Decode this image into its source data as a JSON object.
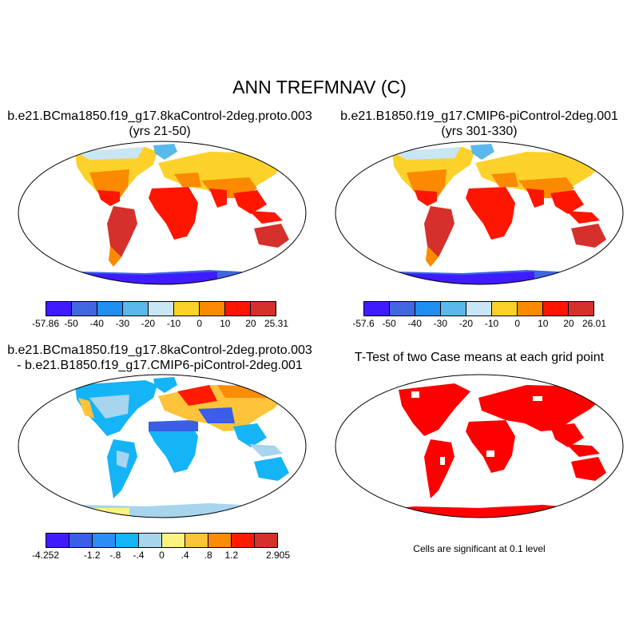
{
  "title": "ANN TREFMNAV (C)",
  "panels": {
    "case1": {
      "title_line1": "b.e21.BCma1850.f19_g17.8kaControl-2deg.proto.003",
      "title_line2": "(yrs 21-50)",
      "colors": [
        "#3f1cff",
        "#4066e0",
        "#1e8ff0",
        "#5ab8ea",
        "#c8e6f5",
        "#fcd22a",
        "#fb8a00",
        "#ff1600",
        "#d5302c"
      ],
      "tick_labels": [
        "-57.86",
        "-50",
        "-40",
        "-30",
        "-20",
        "-10",
        "0",
        "10",
        "20",
        "25.31"
      ]
    },
    "case2": {
      "title_line1": "b.e21.B1850.f19_g17.CMIP6-piControl-2deg.001",
      "title_line2": "(yrs 301-330)",
      "colors": [
        "#3f1cff",
        "#4066e0",
        "#1e8ff0",
        "#5ab8ea",
        "#c8e6f5",
        "#fcd22a",
        "#fb8a00",
        "#ff1600",
        "#d5302c"
      ],
      "tick_labels": [
        "-57.6",
        "-50",
        "-40",
        "-30",
        "-20",
        "-10",
        "0",
        "10",
        "20",
        "26.01"
      ]
    },
    "diff": {
      "title_line1": "b.e21.BCma1850.f19_g17.8kaControl-2deg.proto.003",
      "title_line2": "- b.e21.B1850.f19_g17.CMIP6-piControl-2deg.001",
      "colors": [
        "#3f1cff",
        "#3a5ee6",
        "#2b8ef3",
        "#14b4f6",
        "#a7d5ee",
        "#fff280",
        "#fdc33a",
        "#fb8c05",
        "#ff1a00",
        "#d5302c"
      ],
      "tick_labels": [
        "-4.252",
        "",
        "-1.2",
        "-.8",
        "-.4",
        "0",
        ".4",
        ".8",
        "1.2",
        "",
        "2.905"
      ]
    },
    "ttest": {
      "title": "T-Test of two Case means at each grid point",
      "note": "Cells are significant at 0.1 level",
      "color": "#ff0000"
    }
  }
}
